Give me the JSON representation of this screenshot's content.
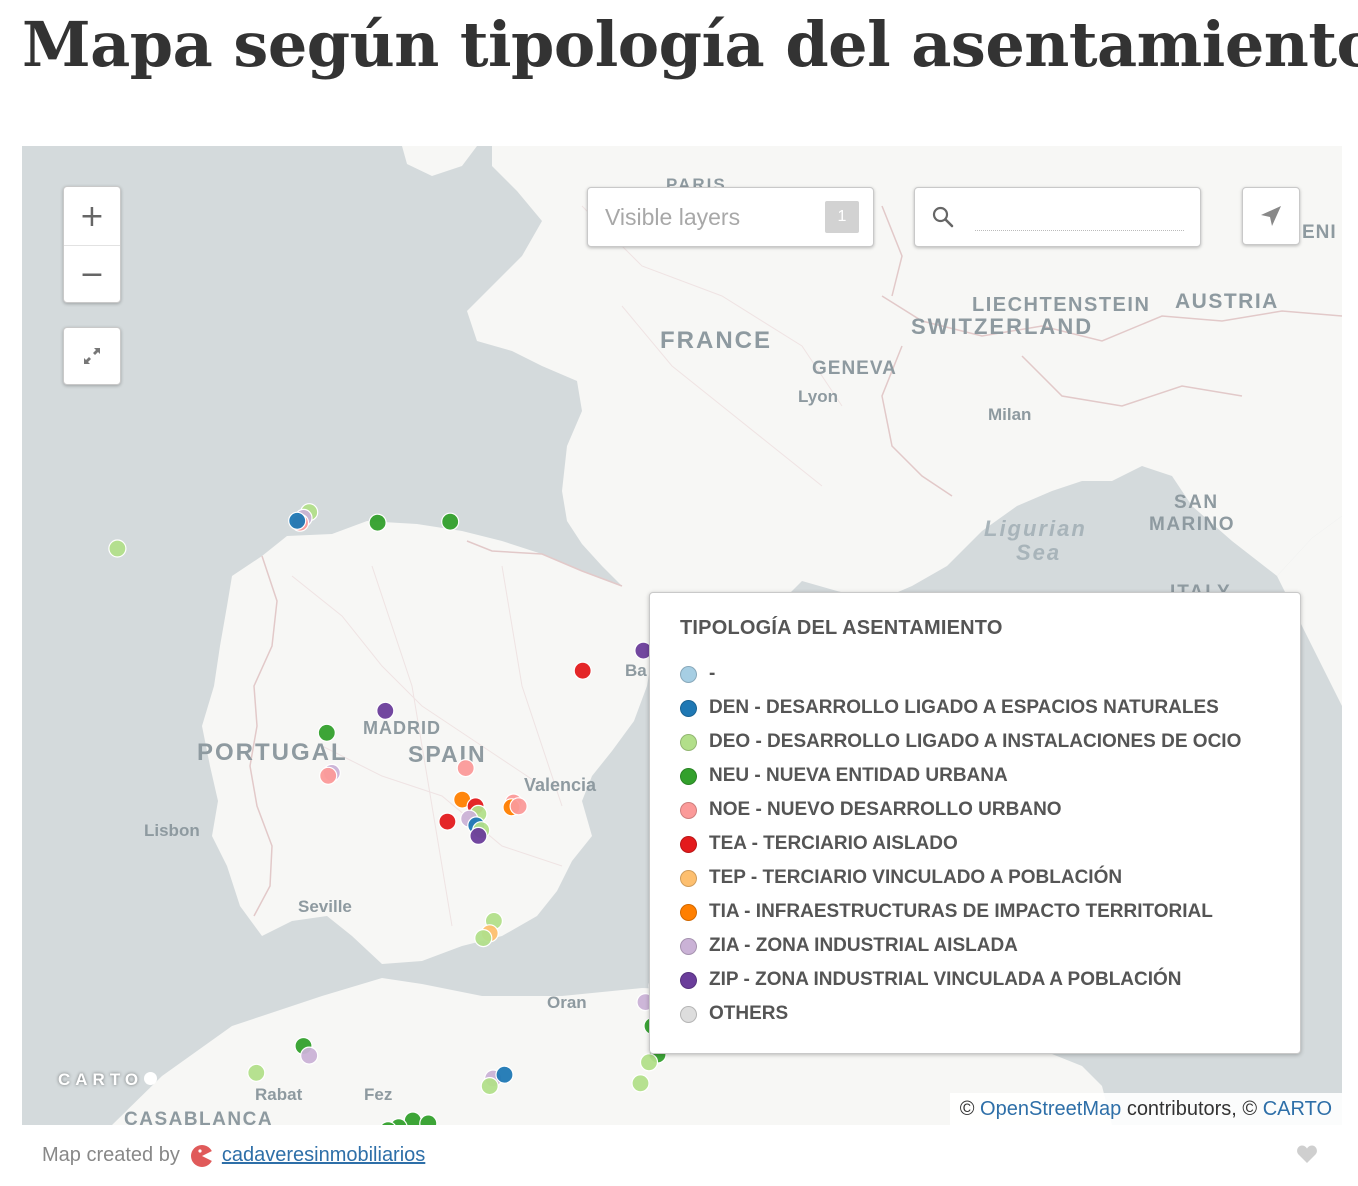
{
  "title": "Mapa según tipología del asentamiento",
  "controls": {
    "zoom_in": "+",
    "zoom_out": "−",
    "layers_placeholder": "Visible layers",
    "layers_count": "1",
    "search_placeholder": ""
  },
  "map_labels": {
    "paris": "PARIS",
    "france": "FRANCE",
    "liechtenstein": "LIECHTENSTEIN",
    "austria": "AUSTRIA",
    "switzerland": "SWITZERLAND",
    "geneva": "GENEVA",
    "lyon": "Lyon",
    "milan": "Milan",
    "san": "SAN",
    "marino": "MARINO",
    "ligurian": "Ligurian",
    "sea": "Sea",
    "italy": "ITALY",
    "ba": "Ba",
    "portugal": "PORTUGAL",
    "madrid": "MADRID",
    "spain": "SPAIN",
    "valencia": "Valencia",
    "lisbon": "Lisbon",
    "seville": "Seville",
    "oran": "Oran",
    "rabat": "Rabat",
    "fez": "Fez",
    "casablanca": "CASABLANCA",
    "ini": "ENI"
  },
  "legend": {
    "title": "TIPOLOGÍA DEL ASENTAMIENTO",
    "items": [
      {
        "code": "-",
        "label": "-",
        "color": "#a6cee3"
      },
      {
        "code": "DEN",
        "label": "DEN - DESARROLLO LIGADO A ESPACIOS NATURALES",
        "color": "#1f78b4"
      },
      {
        "code": "DEO",
        "label": "DEO - DESARROLLO LIGADO A INSTALACIONES DE OCIO",
        "color": "#b2df8a"
      },
      {
        "code": "NEU",
        "label": "NEU - NUEVA ENTIDAD URBANA",
        "color": "#33a02c"
      },
      {
        "code": "NOE",
        "label": "NOE - NUEVO DESARROLLO URBANO",
        "color": "#fb9a99"
      },
      {
        "code": "TEA",
        "label": "TEA - TERCIARIO AISLADO",
        "color": "#e31a1c"
      },
      {
        "code": "TEP",
        "label": "TEP - TERCIARIO VINCULADO A POBLACIÓN",
        "color": "#fdbf6f"
      },
      {
        "code": "TIA",
        "label": "TIA - INFRAESTRUCTURAS DE IMPACTO TERRITORIAL",
        "color": "#ff7f00"
      },
      {
        "code": "ZIA",
        "label": "ZIA - ZONA INDUSTRIAL AISLADA",
        "color": "#cab2d6"
      },
      {
        "code": "ZIP",
        "label": "ZIP - ZONA INDUSTRIAL VINCULADA A POBLACIÓN",
        "color": "#6a3d9a"
      },
      {
        "code": "OTHERS",
        "label": "OTHERS",
        "color": "#dddddd"
      }
    ]
  },
  "markers": [
    {
      "lat": 42.88,
      "lon": -8.54,
      "type": "DEO"
    },
    {
      "lat": 43.26,
      "lon": -5.82,
      "type": "DEO"
    },
    {
      "lat": 43.2,
      "lon": -5.9,
      "type": "ZIA"
    },
    {
      "lat": 43.15,
      "lon": -5.95,
      "type": "NOE"
    },
    {
      "lat": 43.17,
      "lon": -5.99,
      "type": "DEN"
    },
    {
      "lat": 43.15,
      "lon": -4.85,
      "type": "NEU"
    },
    {
      "lat": 43.16,
      "lon": -3.82,
      "type": "NEU"
    },
    {
      "lat": 41.81,
      "lon": -1.08,
      "type": "ZIP"
    },
    {
      "lat": 41.6,
      "lon": -1.94,
      "type": "TEA"
    },
    {
      "lat": 41.42,
      "lon": -0.47,
      "type": "NEU"
    },
    {
      "lat": 41.63,
      "lon": -0.1,
      "type": "NEU"
    },
    {
      "lat": 41.41,
      "lon": 0.82,
      "type": "DEO"
    },
    {
      "lat": 41.18,
      "lon": -4.74,
      "type": "ZIP"
    },
    {
      "lat": 40.95,
      "lon": -5.57,
      "type": "NEU"
    },
    {
      "lat": 40.53,
      "lon": -5.5,
      "type": "ZIA"
    },
    {
      "lat": 40.5,
      "lon": -5.55,
      "type": "NOE"
    },
    {
      "lat": 40.58,
      "lon": -3.6,
      "type": "NOE"
    },
    {
      "lat": 40.25,
      "lon": -3.65,
      "type": "TIA"
    },
    {
      "lat": 40.18,
      "lon": -3.46,
      "type": "TEA"
    },
    {
      "lat": 40.1,
      "lon": -3.42,
      "type": "DEO"
    },
    {
      "lat": 40.05,
      "lon": -3.55,
      "type": "ZIA"
    },
    {
      "lat": 39.98,
      "lon": -3.45,
      "type": "DEN"
    },
    {
      "lat": 39.93,
      "lon": -3.38,
      "type": "DEO"
    },
    {
      "lat": 39.87,
      "lon": -3.42,
      "type": "ZIP"
    },
    {
      "lat": 40.22,
      "lon": -2.92,
      "type": "NOE"
    },
    {
      "lat": 40.17,
      "lon": -2.95,
      "type": "TIA"
    },
    {
      "lat": 40.18,
      "lon": -2.85,
      "type": "NOE"
    },
    {
      "lat": 40.02,
      "lon": -3.86,
      "type": "TEA"
    },
    {
      "lat": 39.81,
      "lon": 0.53,
      "type": "TIA"
    },
    {
      "lat": 38.98,
      "lon": -3.2,
      "type": "DEO"
    },
    {
      "lat": 38.85,
      "lon": -3.26,
      "type": "TEP"
    },
    {
      "lat": 38.8,
      "lon": -3.35,
      "type": "DEO"
    },
    {
      "lat": 38.93,
      "lon": -0.8,
      "type": "NEU"
    },
    {
      "lat": 38.8,
      "lon": 0.46,
      "type": "NEU"
    },
    {
      "lat": 38.3,
      "lon": -0.88,
      "type": "NEU"
    },
    {
      "lat": 38.05,
      "lon": -0.55,
      "type": "NEU"
    },
    {
      "lat": 38.1,
      "lon": -0.7,
      "type": "NEU"
    },
    {
      "lat": 38.08,
      "lon": -0.6,
      "type": "ZIP"
    },
    {
      "lat": 38.13,
      "lon": -1.05,
      "type": "ZIA"
    },
    {
      "lat": 38.2,
      "lon": -0.38,
      "type": "NEU"
    },
    {
      "lat": 37.9,
      "lon": -0.35,
      "type": "NEU"
    },
    {
      "lat": 37.93,
      "lon": -0.28,
      "type": "NEU"
    },
    {
      "lat": 37.88,
      "lon": -0.95,
      "type": "NEU"
    },
    {
      "lat": 37.85,
      "lon": -0.6,
      "type": "DEO"
    },
    {
      "lat": 37.92,
      "lon": -0.7,
      "type": "DEO"
    },
    {
      "lat": 37.98,
      "lon": -0.52,
      "type": "NEU"
    },
    {
      "lat": 37.58,
      "lon": -0.88,
      "type": "NEU"
    },
    {
      "lat": 37.5,
      "lon": -1.0,
      "type": "DEO"
    },
    {
      "lat": 37.28,
      "lon": -1.12,
      "type": "DEO"
    },
    {
      "lat": 37.67,
      "lon": -5.9,
      "type": "NEU"
    },
    {
      "lat": 37.57,
      "lon": -5.82,
      "type": "ZIA"
    },
    {
      "lat": 37.39,
      "lon": -6.57,
      "type": "DEO"
    },
    {
      "lat": 37.33,
      "lon": -3.21,
      "type": "ZIA"
    },
    {
      "lat": 37.25,
      "lon": -3.26,
      "type": "DEO"
    },
    {
      "lat": 37.37,
      "lon": -3.05,
      "type": "DEN"
    },
    {
      "lat": 36.89,
      "lon": -4.35,
      "type": "NEU"
    },
    {
      "lat": 36.82,
      "lon": -4.55,
      "type": "NEU"
    },
    {
      "lat": 36.86,
      "lon": -4.13,
      "type": "NEU"
    },
    {
      "lat": 36.74,
      "lon": -4.9,
      "type": "NEU"
    },
    {
      "lat": 36.79,
      "lon": -4.7,
      "type": "NEU"
    }
  ],
  "carto_logo": "CARTO",
  "attribution": {
    "prefix": "©",
    "osm": "OpenStreetMap",
    "middle": "contributors, ©",
    "carto": "CARTO"
  },
  "footer": {
    "prefix": "Map created by",
    "user": "cadaveresinmobiliarios"
  },
  "colors": {
    "land": "#f7f7f5",
    "sea": "#d4dadc",
    "border": "#e2c9c9",
    "label": "#8e9aa0"
  }
}
